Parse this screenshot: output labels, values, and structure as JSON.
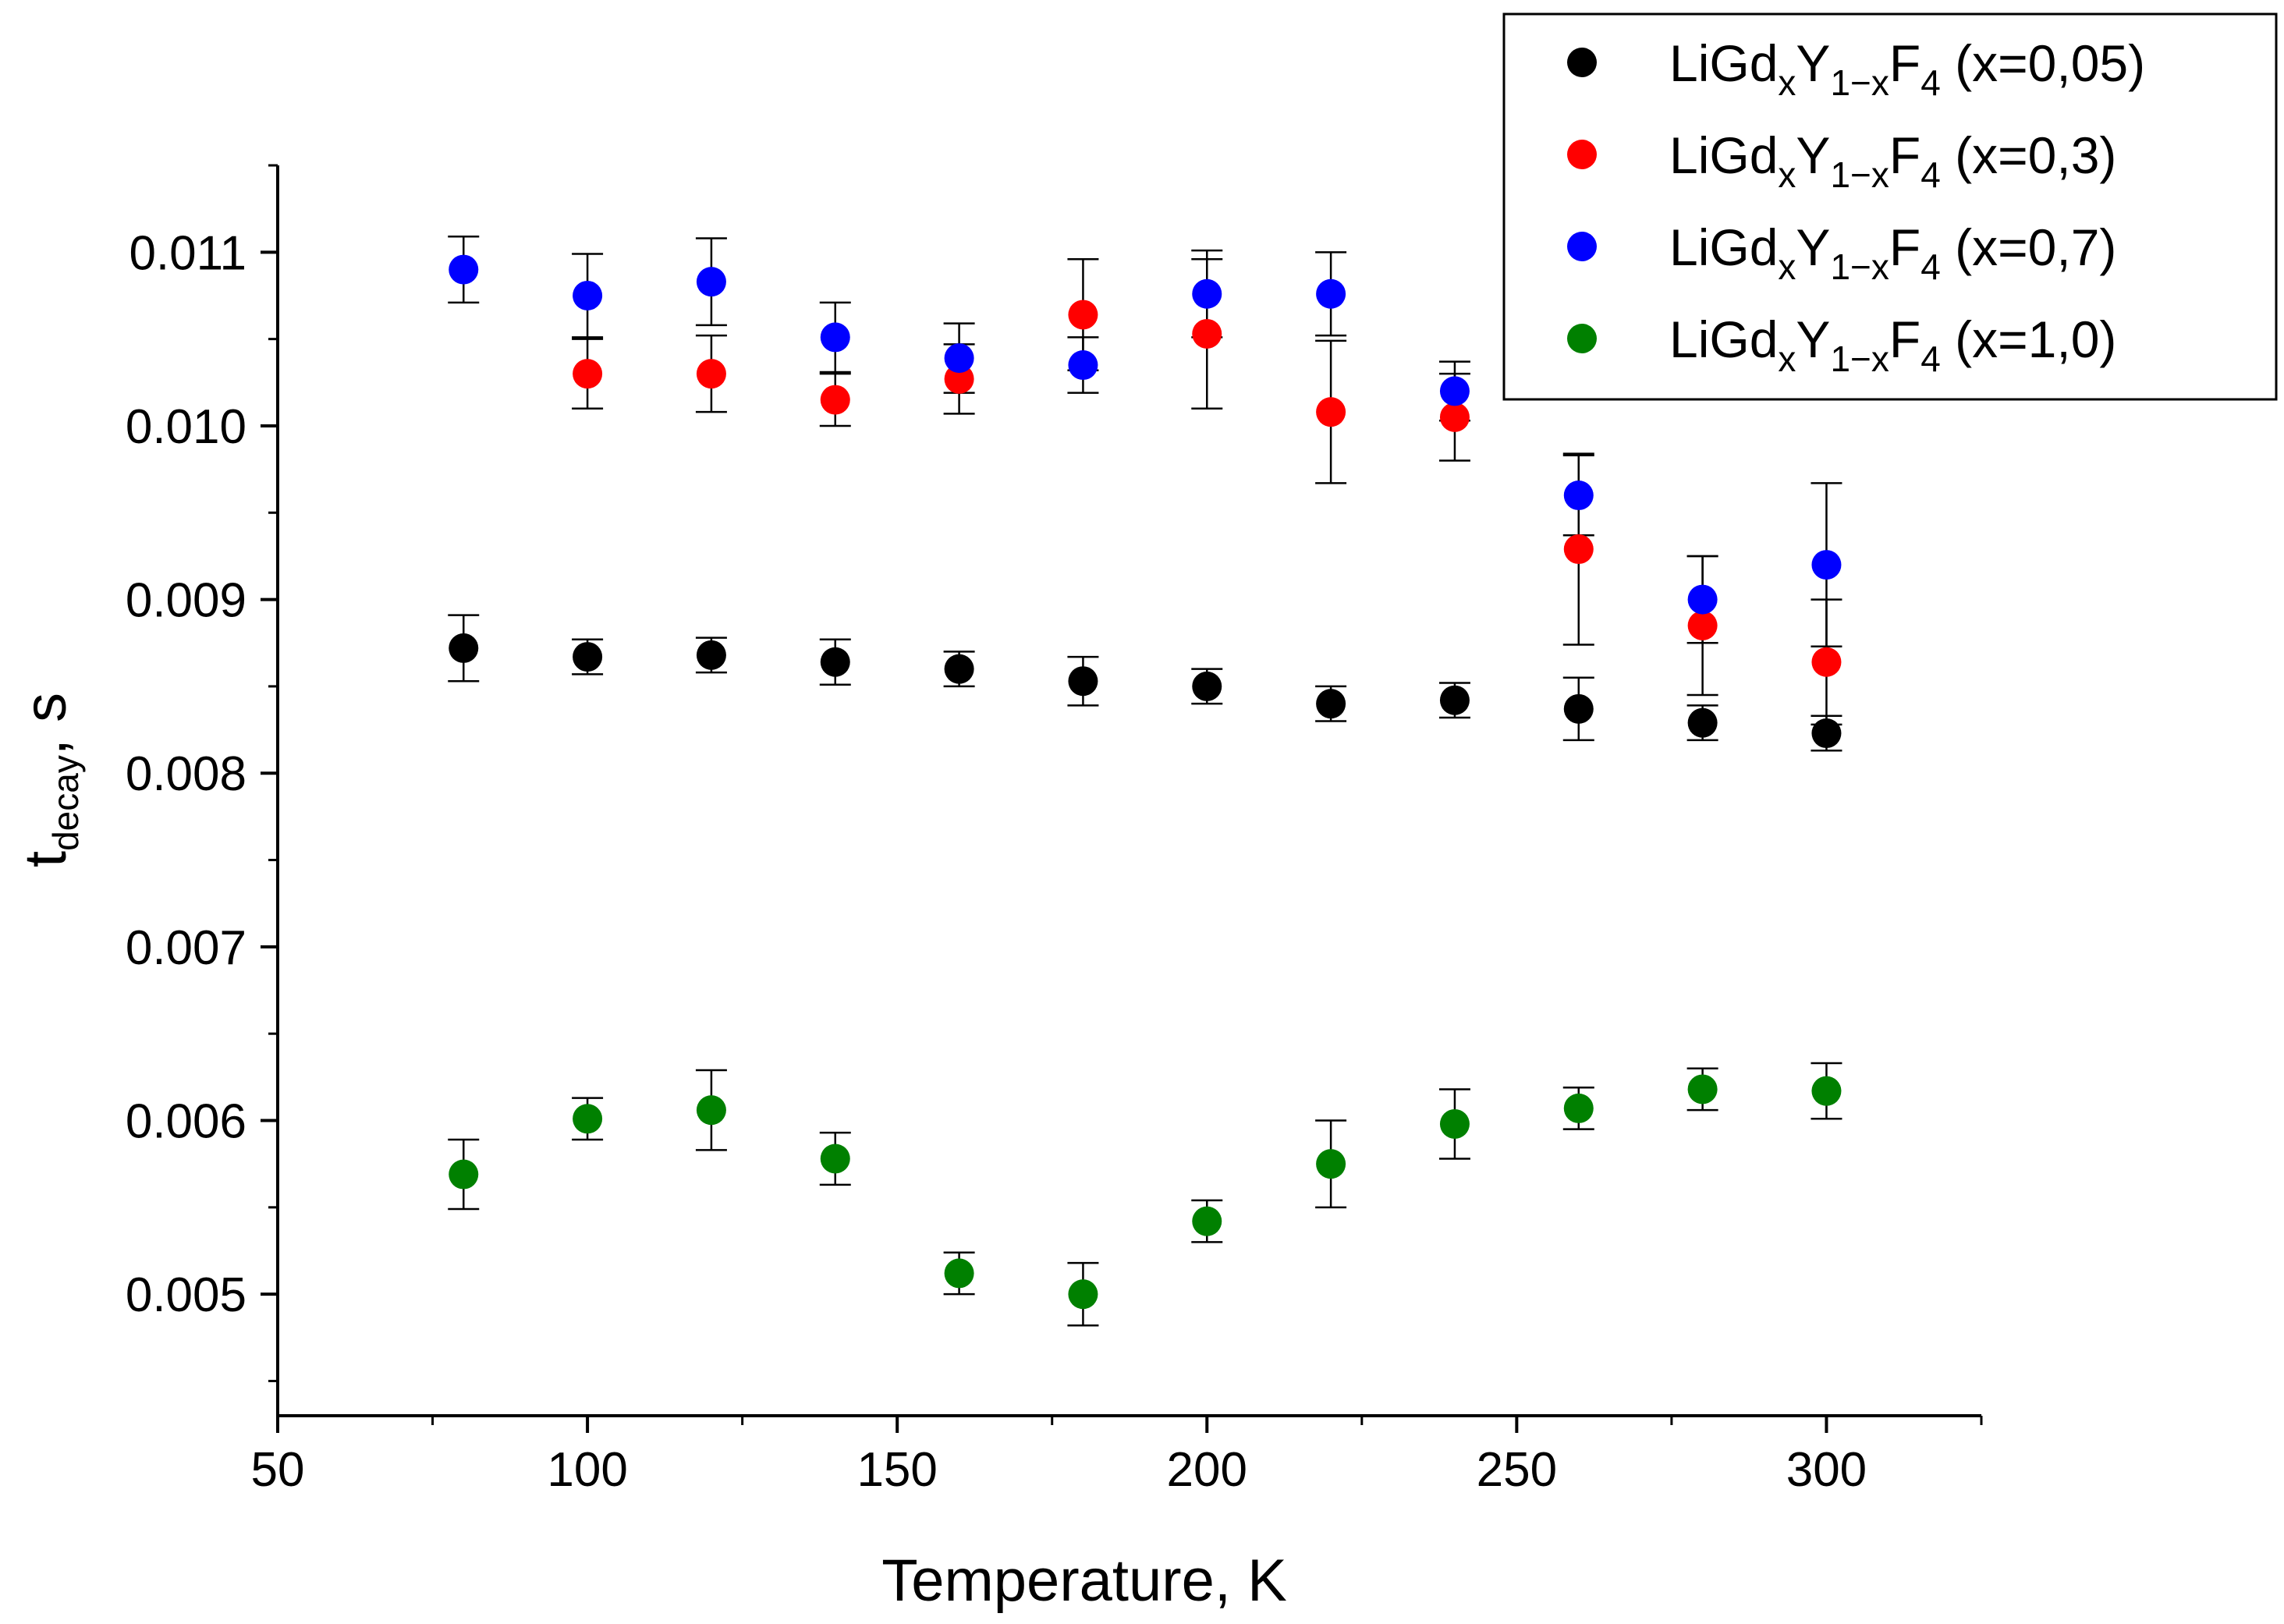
{
  "chart_data": {
    "type": "scatter",
    "title": "",
    "xlabel": "Temperature, K",
    "ylabel": {
      "main": "t",
      "sub": "decay",
      "unit": ", s"
    },
    "xlim": [
      50,
      325
    ],
    "ylim": [
      0.0043,
      0.0115
    ],
    "xticks": [
      50,
      100,
      150,
      200,
      250,
      300
    ],
    "xtick_labels": [
      "50",
      "100",
      "150",
      "200",
      "250",
      "300"
    ],
    "yticks": [
      0.005,
      0.006,
      0.007,
      0.008,
      0.009,
      0.01,
      0.011
    ],
    "ytick_labels": [
      "0.005",
      "0.006",
      "0.007",
      "0.008",
      "0.009",
      "0.010",
      "0.011"
    ],
    "grid": false,
    "legend_position": "top-right",
    "series": [
      {
        "name": "LiGdxY1-xF4 (x=0,05)",
        "label_parts": {
          "a": "LiGd",
          "b": "x",
          "c": "Y",
          "d": "1−x",
          "e": "F",
          "f": "4",
          "g": " (x=0,05)"
        },
        "color": "#000000",
        "x": [
          80,
          100,
          120,
          140,
          160,
          180,
          200,
          220,
          240,
          260,
          280,
          300
        ],
        "y": [
          0.00872,
          0.00867,
          0.00868,
          0.00864,
          0.0086,
          0.00853,
          0.0085,
          0.0084,
          0.00842,
          0.00837,
          0.00829,
          0.00823
        ],
        "err": [
          0.00019,
          0.0001,
          0.0001,
          0.00013,
          0.0001,
          0.00014,
          0.0001,
          0.0001,
          0.0001,
          0.00018,
          0.0001,
          0.0001
        ]
      },
      {
        "name": "LiGdxY1-xF4 (x=0,3)",
        "label_parts": {
          "a": "LiGd",
          "b": "x",
          "c": "Y",
          "d": "1−x",
          "e": "F",
          "f": "4",
          "g": " (x=0,3)"
        },
        "color": "#ff0000",
        "x": [
          100,
          120,
          140,
          160,
          180,
          200,
          220,
          240,
          260,
          280,
          300
        ],
        "y": [
          0.0103,
          0.0103,
          0.01015,
          0.01027,
          0.01064,
          0.01053,
          0.01008,
          0.01005,
          0.00929,
          0.00885,
          0.00864
        ],
        "err": [
          0.0002,
          0.00022,
          0.00015,
          0.0002,
          0.00032,
          0.00043,
          0.00041,
          0.00025,
          0.00055,
          0.0004,
          0.00036
        ]
      },
      {
        "name": "LiGdxY1-xF4 (x=0,7)",
        "label_parts": {
          "a": "LiGd",
          "b": "x",
          "c": "Y",
          "d": "1−x",
          "e": "F",
          "f": "4",
          "g": " (x=0,7)"
        },
        "color": "#0000ff",
        "x": [
          80,
          100,
          120,
          140,
          160,
          180,
          200,
          220,
          240,
          260,
          280,
          300
        ],
        "y": [
          0.0109,
          0.01075,
          0.01083,
          0.01051,
          0.01039,
          0.01035,
          0.01076,
          0.01076,
          0.0102,
          0.0096,
          0.009,
          0.0092
        ],
        "err": [
          0.00019,
          0.00024,
          0.00025,
          0.0002,
          0.0002,
          0.00016,
          0.00025,
          0.00024,
          0.00017,
          0.00023,
          0.00025,
          0.00047
        ]
      },
      {
        "name": "LiGdxY1-xF4 (x=1,0)",
        "label_parts": {
          "a": "LiGd",
          "b": "x",
          "c": "Y",
          "d": "1−x",
          "e": "F",
          "f": "4",
          "g": " (x=1,0)"
        },
        "color": "#008000",
        "x": [
          80,
          100,
          120,
          140,
          160,
          180,
          200,
          220,
          240,
          260,
          280,
          300
        ],
        "y": [
          0.00569,
          0.00601,
          0.00606,
          0.00578,
          0.00512,
          0.005,
          0.00542,
          0.00575,
          0.00598,
          0.00607,
          0.00618,
          0.00617
        ],
        "err": [
          0.0002,
          0.00012,
          0.00023,
          0.00015,
          0.00012,
          0.00018,
          0.00012,
          0.00025,
          0.0002,
          0.00012,
          0.00012,
          0.00016
        ]
      }
    ]
  }
}
